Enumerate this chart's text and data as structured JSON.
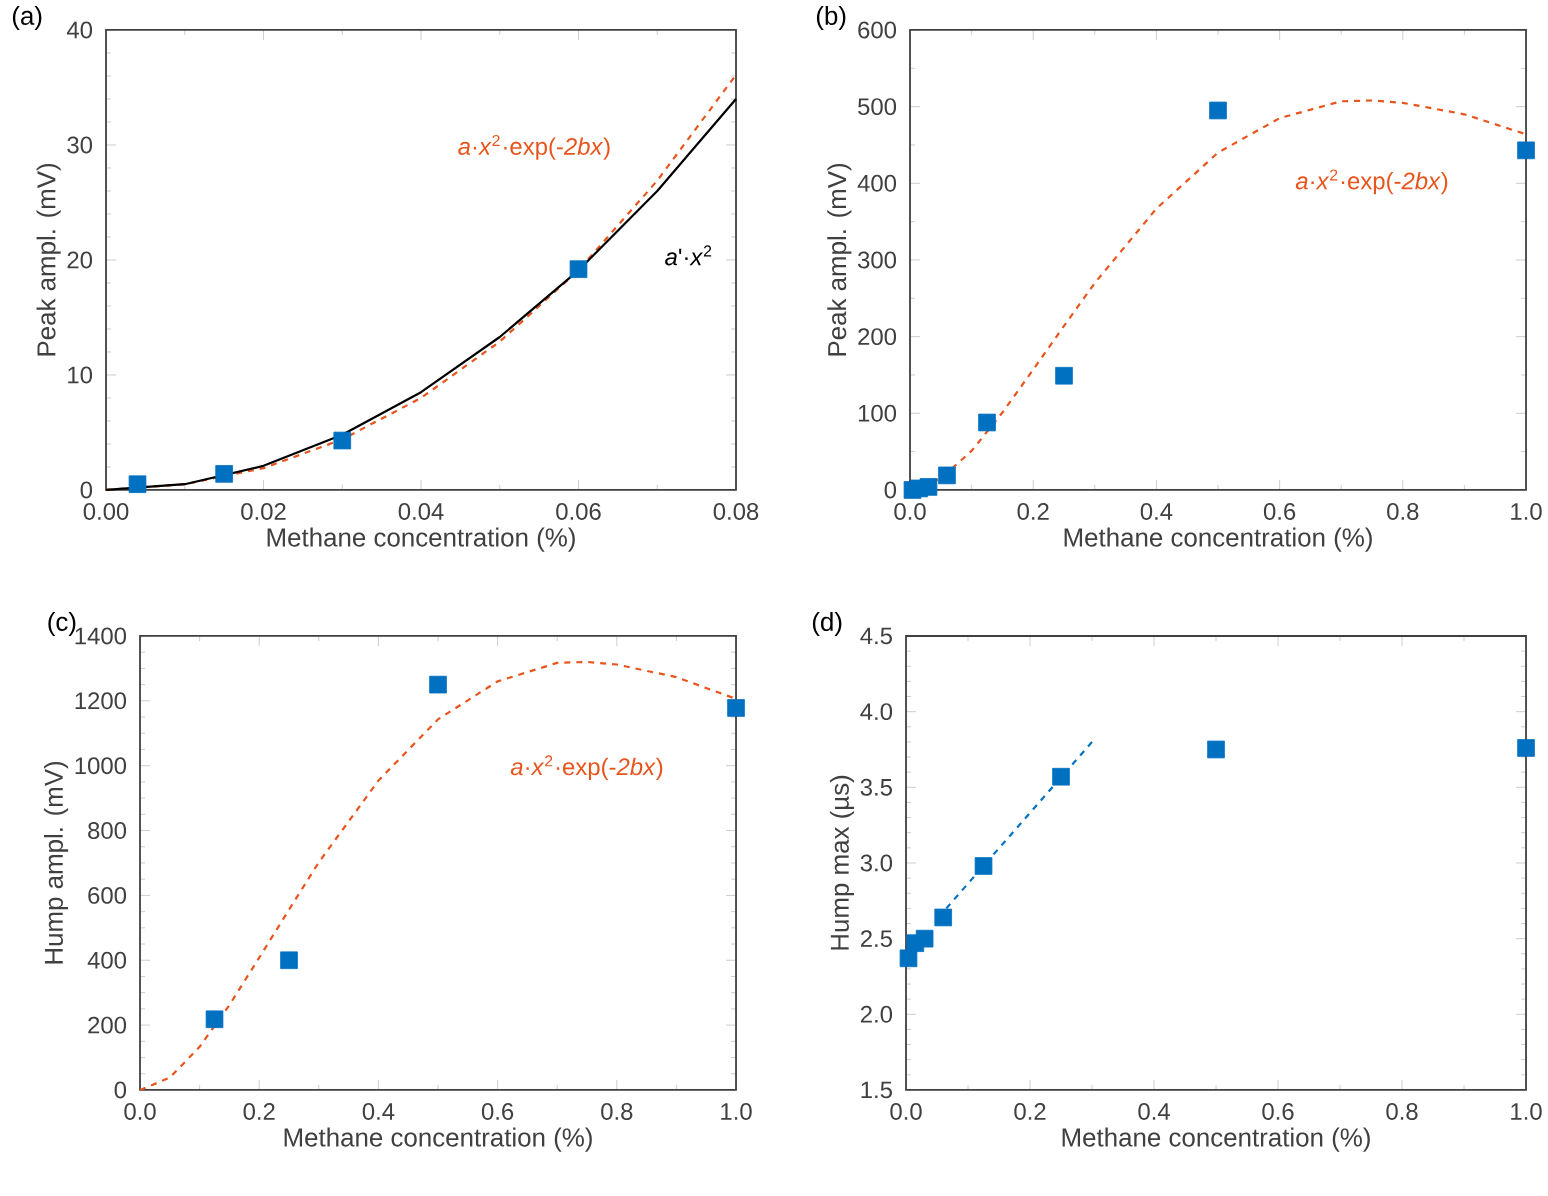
{
  "chart_data": [
    {
      "type": "scatter",
      "title": "(a)",
      "xlabel": "Methane concentration (%)",
      "ylabel": "Peak ampl. (mV)",
      "xlim": [
        0,
        0.08
      ],
      "ylim": [
        0,
        40
      ],
      "xticks": [
        {
          "value": 0,
          "label": "0.00"
        },
        {
          "value": 0.02,
          "label": "0.02"
        },
        {
          "value": 0.04,
          "label": "0.04"
        },
        {
          "value": 0.06,
          "label": "0.06"
        },
        {
          "value": 0.08,
          "label": "0.08"
        }
      ],
      "yticks": [
        0,
        10,
        20,
        30,
        40
      ],
      "series": [
        {
          "type": "scatter",
          "color": "#0070c0",
          "marker": "square",
          "x": [
            0.004,
            0.015,
            0.03,
            0.06
          ],
          "values": [
            0.5,
            1.4,
            4.3,
            19.2
          ]
        },
        {
          "type": "line",
          "color": "#e8541c",
          "line_style": "dashed",
          "marker": "none",
          "x": [
            0,
            0.01,
            0.02,
            0.03,
            0.04,
            0.05,
            0.06,
            0.07,
            0.08
          ],
          "values": [
            0,
            0.5,
            1.9,
            4.4,
            8.0,
            12.9,
            19.1,
            26.9,
            36.1
          ]
        },
        {
          "type": "line",
          "color": "#000000",
          "line_style": "solid",
          "marker": "none",
          "x": [
            0,
            0.01,
            0.02,
            0.03,
            0.04,
            0.05,
            0.06,
            0.07,
            0.08
          ],
          "values": [
            0,
            0.5,
            2.1,
            4.8,
            8.5,
            13.3,
            19.1,
            26.0,
            34.0
          ]
        }
      ],
      "annotations": [
        "*a*·*x*$^{2}$·exp(-*2bx*)",
        "*a*'·*x*$^{2}$"
      ]
    },
    {
      "type": "scatter",
      "title": "(b)",
      "xlabel": "Methane concentration (%)",
      "ylabel": "Peak ampl. (mV)",
      "xlim": [
        0,
        1.0
      ],
      "ylim": [
        0,
        600
      ],
      "xticks": [
        {
          "value": 0,
          "label": "0.0"
        },
        {
          "value": 0.2,
          "label": "0.2"
        },
        {
          "value": 0.4,
          "label": "0.4"
        },
        {
          "value": 0.6,
          "label": "0.6"
        },
        {
          "value": 0.8,
          "label": "0.8"
        },
        {
          "value": 1.0,
          "label": "1.0"
        }
      ],
      "yticks": [
        0,
        100,
        200,
        300,
        400,
        500,
        600
      ],
      "series": [
        {
          "type": "scatter",
          "color": "#0070c0",
          "marker": "square",
          "x": [
            0.004,
            0.015,
            0.03,
            0.06,
            0.125,
            0.25,
            0.5,
            1.0
          ],
          "values": [
            0,
            2,
            4,
            19,
            88,
            149,
            495,
            443
          ]
        },
        {
          "type": "line",
          "color": "#e8541c",
          "line_style": "dashed",
          "marker": "none",
          "x": [
            0,
            0.05,
            0.1,
            0.15,
            0.2,
            0.25,
            0.3,
            0.4,
            0.5,
            0.6,
            0.7,
            0.75,
            0.8,
            0.9,
            1.0
          ],
          "values": [
            0,
            15,
            51,
            101,
            157,
            214,
            270,
            367,
            440,
            485,
            507,
            508,
            505,
            490,
            464
          ]
        }
      ],
      "annotations": [
        "*a*·*x*$^{2}$·exp(-*2bx*)"
      ]
    },
    {
      "type": "scatter",
      "title": "(c)",
      "xlabel": "Methane concentration (%)",
      "ylabel": "Hump ampl. (mV)",
      "xlim": [
        0,
        1.0
      ],
      "ylim": [
        0,
        1400
      ],
      "xticks": [
        {
          "value": 0,
          "label": "0.0"
        },
        {
          "value": 0.2,
          "label": "0.2"
        },
        {
          "value": 0.4,
          "label": "0.4"
        },
        {
          "value": 0.6,
          "label": "0.6"
        },
        {
          "value": 0.8,
          "label": "0.8"
        },
        {
          "value": 1.0,
          "label": "1.0"
        }
      ],
      "yticks": [
        0,
        200,
        400,
        600,
        800,
        1000,
        1200,
        1400
      ],
      "series": [
        {
          "type": "scatter",
          "color": "#0070c0",
          "marker": "square",
          "x": [
            0.125,
            0.25,
            0.5,
            1.0
          ],
          "values": [
            218,
            400,
            1250,
            1178
          ]
        },
        {
          "type": "line",
          "color": "#e8541c",
          "line_style": "dashed",
          "marker": "none",
          "x": [
            0,
            0.05,
            0.1,
            0.15,
            0.2,
            0.25,
            0.3,
            0.4,
            0.5,
            0.6,
            0.7,
            0.75,
            0.8,
            0.9,
            1.0
          ],
          "values": [
            0,
            38,
            133,
            262,
            408,
            556,
            702,
            954,
            1143,
            1260,
            1317,
            1320,
            1312,
            1273,
            1206
          ]
        }
      ],
      "annotations": [
        "*a*·*x*$^{2}$·exp(-*2bx*)"
      ]
    },
    {
      "type": "scatter",
      "title": "(d)",
      "xlabel": "Methane concentration (%)",
      "ylabel": "Hump max (µs)",
      "xlim": [
        0,
        1.0
      ],
      "ylim": [
        1.5,
        4.5
      ],
      "xticks": [
        {
          "value": 0,
          "label": "0.0"
        },
        {
          "value": 0.2,
          "label": "0.2"
        },
        {
          "value": 0.4,
          "label": "0.4"
        },
        {
          "value": 0.6,
          "label": "0.6"
        },
        {
          "value": 0.8,
          "label": "0.8"
        },
        {
          "value": 1.0,
          "label": "1.0"
        }
      ],
      "yticks": [
        1.5,
        {
          "value": 2.0,
          "label": "2.0"
        },
        2.5,
        {
          "value": 3.0,
          "label": "3.0"
        },
        3.5,
        {
          "value": 4.0,
          "label": "4.0"
        },
        4.5
      ],
      "series": [
        {
          "type": "scatter",
          "color": "#0070c0",
          "marker": "square",
          "x": [
            0.004,
            0.015,
            0.03,
            0.06,
            0.125,
            0.25,
            0.5,
            1.0
          ],
          "values": [
            2.37,
            2.47,
            2.5,
            2.64,
            2.98,
            3.57,
            3.75,
            3.76
          ]
        },
        {
          "type": "line",
          "color": "#0070c0",
          "line_style": "dashed",
          "marker": "none",
          "x": [
            0.065,
            0.3
          ],
          "values": [
            2.7,
            3.8
          ]
        }
      ]
    }
  ]
}
